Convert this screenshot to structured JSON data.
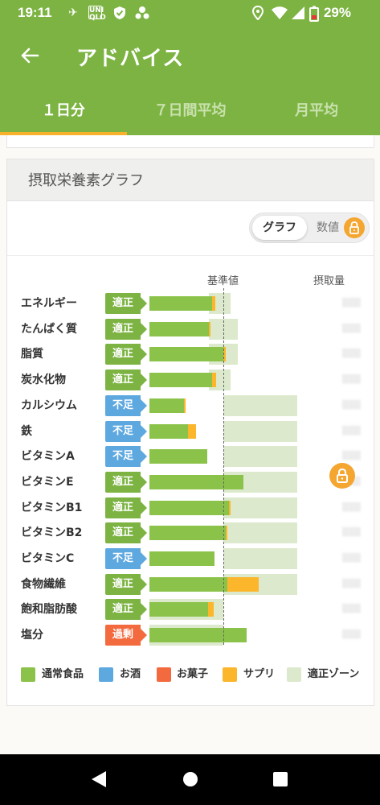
{
  "status": {
    "time": "19:11",
    "battery": "29%",
    "icons": [
      "bird-icon",
      "uniqlo-icon",
      "shield-check-icon",
      "app-icon",
      "location-icon",
      "wifi-icon",
      "signal-icon",
      "battery-icon"
    ]
  },
  "appbar": {
    "title": "アドバイス",
    "back_icon": "back-arrow-icon"
  },
  "tabs": [
    {
      "label": "１日分",
      "active": true
    },
    {
      "label": "７日間平均",
      "active": false
    },
    {
      "label": "月平均",
      "active": false
    }
  ],
  "card": {
    "title": "摂取栄養素グラフ",
    "toggle": {
      "on_label": "グラフ",
      "off_label": "数値",
      "lock_icon": "lock-icon"
    },
    "col_headers": {
      "reference": "基準値",
      "intake": "摂取量"
    }
  },
  "status_labels": {
    "ok": "適正",
    "low": "不足",
    "high": "過剰"
  },
  "colors": {
    "normal_food": "#8bc34a",
    "alcohol": "#5ea8e0",
    "sweets": "#f26a3d",
    "supplement": "#fbb62c",
    "proper_zone": "#dde9cc",
    "accent": "#7cb342"
  },
  "chart_data": {
    "type": "bar",
    "orientation": "horizontal",
    "reference_line": 1.0,
    "units": "ratio to reference value",
    "rows": [
      {
        "name": "エネルギー",
        "status": "適正",
        "normal": 0.85,
        "supplement": 0.04,
        "zone": [
          0.8,
          1.1
        ]
      },
      {
        "name": "たんぱく質",
        "status": "適正",
        "normal": 0.8,
        "supplement": 0.03,
        "zone": [
          0.8,
          1.2
        ]
      },
      {
        "name": "脂質",
        "status": "適正",
        "normal": 1.0,
        "supplement": 0.03,
        "zone": [
          0.8,
          1.2
        ]
      },
      {
        "name": "炭水化物",
        "status": "適正",
        "normal": 0.85,
        "supplement": 0.05,
        "zone": [
          0.8,
          1.1
        ]
      },
      {
        "name": "カルシウム",
        "status": "不足",
        "normal": 0.47,
        "supplement": 0.02,
        "zone": [
          1.0,
          2.0
        ]
      },
      {
        "name": "鉄",
        "status": "不足",
        "normal": 0.52,
        "supplement": 0.11,
        "zone": [
          1.0,
          2.0
        ]
      },
      {
        "name": "ビタミンA",
        "status": "不足",
        "normal": 0.78,
        "supplement": 0,
        "zone": [
          1.0,
          2.0
        ]
      },
      {
        "name": "ビタミンE",
        "status": "適正",
        "normal": 1.27,
        "supplement": 0,
        "zone": [
          1.0,
          2.0
        ]
      },
      {
        "name": "ビタミンB1",
        "status": "適正",
        "normal": 1.08,
        "supplement": 0.02,
        "zone": [
          1.0,
          2.0
        ]
      },
      {
        "name": "ビタミンB2",
        "status": "適正",
        "normal": 1.03,
        "supplement": 0.02,
        "zone": [
          1.0,
          2.0
        ]
      },
      {
        "name": "ビタミンC",
        "status": "不足",
        "normal": 0.88,
        "supplement": 0,
        "zone": [
          1.0,
          2.0
        ]
      },
      {
        "name": "食物繊維",
        "status": "適正",
        "normal": 1.05,
        "supplement": 0.43,
        "zone": [
          1.0,
          2.0
        ]
      },
      {
        "name": "飽和脂肪酸",
        "status": "適正",
        "normal": 0.79,
        "supplement": 0.08,
        "zone": [
          0.0,
          1.0
        ]
      },
      {
        "name": "塩分",
        "status": "過剰",
        "normal": 1.32,
        "supplement": 0,
        "zone": [
          0.0,
          1.0
        ]
      }
    ],
    "legend": [
      "通常食品",
      "お酒",
      "お菓子",
      "サプリ",
      "適正ゾーン"
    ],
    "legend_position": "bottom"
  }
}
